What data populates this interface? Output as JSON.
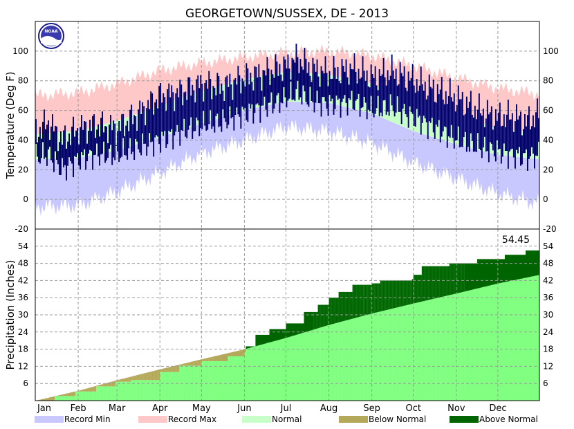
{
  "title": "GEORGETOWN/SUSSEX, DE - 2013",
  "colors": {
    "record_min": "#c8c8ff",
    "record_max": "#ffc8c8",
    "normal": "#c8ffc8",
    "observed": "#000066",
    "below_normal": "#b4a85a",
    "above_normal": "#006400",
    "normal_precip": "#80ff80"
  },
  "chart_data": [
    {
      "type": "area",
      "panel": "temperature",
      "ylabel": "Temperature (Deg F)",
      "ylim": [
        -20,
        120
      ],
      "yticks": [
        -20,
        0,
        20,
        40,
        60,
        80,
        100
      ],
      "grid": true,
      "x_unit": "day_of_year",
      "categories": [
        "Jan",
        "Feb",
        "Mar",
        "Apr",
        "May",
        "Jun",
        "Jul",
        "Aug",
        "Sep",
        "Oct",
        "Nov",
        "Dec"
      ],
      "series": [
        {
          "name": "Record Max",
          "x": [
            1,
            32,
            60,
            91,
            121,
            152,
            182,
            213,
            244,
            274,
            305,
            335,
            365
          ],
          "values": [
            70,
            72,
            78,
            87,
            92,
            96,
            99,
            100,
            97,
            90,
            82,
            75,
            71
          ]
        },
        {
          "name": "Normal",
          "x": [
            1,
            32,
            60,
            91,
            121,
            152,
            182,
            213,
            244,
            274,
            305,
            335,
            365
          ],
          "values": [
            44,
            46,
            53,
            63,
            73,
            81,
            86,
            84,
            78,
            67,
            57,
            48,
            44
          ]
        },
        {
          "name": "Normal",
          "x": [
            1,
            32,
            60,
            91,
            121,
            152,
            182,
            213,
            244,
            274,
            305,
            335,
            365
          ],
          "values": [
            27,
            28,
            33,
            42,
            51,
            60,
            66,
            65,
            58,
            46,
            37,
            30,
            27
          ]
        },
        {
          "name": "Record Min",
          "x": [
            1,
            32,
            60,
            91,
            121,
            152,
            182,
            213,
            244,
            274,
            305,
            335,
            365
          ],
          "values": [
            -5,
            -4,
            5,
            18,
            31,
            40,
            49,
            46,
            38,
            25,
            14,
            4,
            -3
          ]
        },
        {
          "name": "observed_max",
          "x": [
            1,
            10,
            20,
            32,
            45,
            60,
            75,
            91,
            105,
            121,
            135,
            152,
            165,
            182,
            190,
            200,
            213,
            230,
            244,
            258,
            274,
            285,
            305,
            320,
            335,
            345,
            355,
            365
          ],
          "values": [
            45,
            52,
            40,
            48,
            50,
            48,
            58,
            70,
            72,
            78,
            76,
            82,
            85,
            90,
            95,
            88,
            85,
            88,
            82,
            86,
            80,
            75,
            68,
            60,
            55,
            56,
            52,
            58
          ]
        },
        {
          "name": "observed_min",
          "x": [
            1,
            10,
            20,
            32,
            45,
            60,
            75,
            91,
            105,
            121,
            135,
            152,
            165,
            182,
            190,
            200,
            213,
            230,
            244,
            258,
            274,
            285,
            305,
            320,
            335,
            345,
            355,
            365
          ],
          "values": [
            28,
            30,
            20,
            27,
            30,
            30,
            35,
            40,
            45,
            50,
            52,
            58,
            62,
            68,
            72,
            66,
            64,
            66,
            60,
            62,
            55,
            50,
            40,
            35,
            32,
            30,
            28,
            30
          ]
        }
      ]
    },
    {
      "type": "area",
      "panel": "precipitation",
      "ylabel": "Precipitation (Inches)",
      "ylim": [
        0,
        60
      ],
      "yticks": [
        6,
        12,
        18,
        24,
        30,
        36,
        42,
        48,
        54
      ],
      "grid": true,
      "annotation": "54.45",
      "x_unit": "day_of_year",
      "categories": [
        "Jan",
        "Feb",
        "Mar",
        "Apr",
        "May",
        "Jun",
        "Jul",
        "Aug",
        "Sep",
        "Oct",
        "Nov",
        "Dec"
      ],
      "series": [
        {
          "name": "Normal",
          "x": [
            1,
            32,
            60,
            91,
            121,
            152,
            182,
            213,
            244,
            274,
            305,
            335,
            365
          ],
          "values": [
            0,
            3.5,
            7.2,
            11,
            14.5,
            18,
            22,
            26.5,
            30.5,
            34,
            37.5,
            41,
            44
          ]
        },
        {
          "name": "observed",
          "x": [
            1,
            15,
            30,
            45,
            59,
            70,
            91,
            105,
            121,
            140,
            152,
            153,
            160,
            170,
            182,
            195,
            205,
            213,
            220,
            230,
            244,
            250,
            273,
            274,
            280,
            300,
            320,
            340,
            355,
            365
          ],
          "values": [
            0,
            1.6,
            3.2,
            5.0,
            6.6,
            7.2,
            10.0,
            12.2,
            13.8,
            15.5,
            17.0,
            19.0,
            23.0,
            25.0,
            27.0,
            31.0,
            33.5,
            36.0,
            38.0,
            40.5,
            41.0,
            42.0,
            42.5,
            44.0,
            47.0,
            48.0,
            49.5,
            51.0,
            52.5,
            54.45
          ]
        }
      ]
    }
  ],
  "legend": [
    {
      "label": "Record Min",
      "color_key": "record_min"
    },
    {
      "label": "Record Max",
      "color_key": "record_max"
    },
    {
      "label": "Normal",
      "color_key": "normal"
    },
    {
      "label": "Below Normal",
      "color_key": "below_normal"
    },
    {
      "label": "Above Normal",
      "color_key": "above_normal"
    }
  ],
  "icons": {
    "logo": "noaa-logo-icon"
  },
  "logo_text": "NOAA"
}
